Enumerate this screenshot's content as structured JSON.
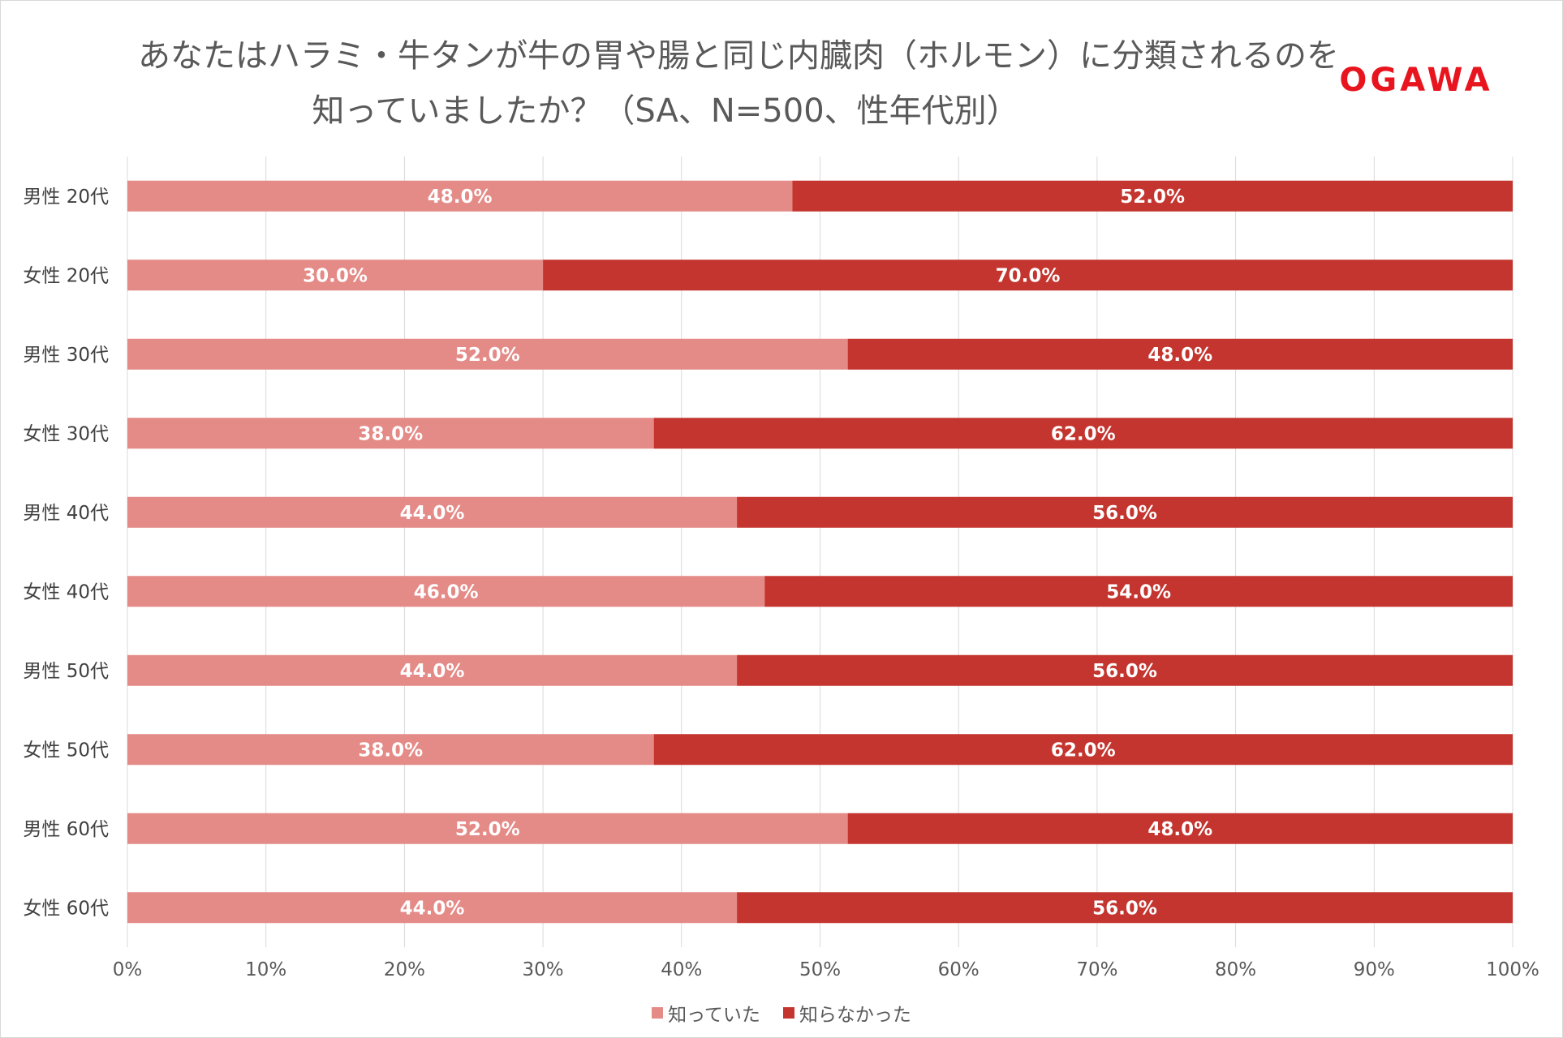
{
  "title": {
    "line1": "あなたはハラミ・牛タンが牛の胃や腸と同じ内臓肉（ホルモン）に分類されるのを",
    "line2": "知っていましたか？（SA、N=500、性年代別）"
  },
  "logo": {
    "text": "OGAWA",
    "color": "#e8141e"
  },
  "legend": {
    "items": [
      {
        "label": "知っていた",
        "color": "#e48a87"
      },
      {
        "label": "知らなかった",
        "color": "#c4352f"
      }
    ],
    "position": "bottom"
  },
  "chart_data": {
    "type": "bar",
    "orientation": "horizontal",
    "stacked": true,
    "percent_scale": true,
    "categories": [
      "男性 20代",
      "女性 20代",
      "男性 30代",
      "女性 30代",
      "男性 40代",
      "女性 40代",
      "男性 50代",
      "女性 50代",
      "男性 60代",
      "女性 60代"
    ],
    "series": [
      {
        "name": "知っていた",
        "color": "#e48a87",
        "values": [
          48.0,
          30.0,
          52.0,
          38.0,
          44.0,
          46.0,
          44.0,
          38.0,
          52.0,
          44.0
        ]
      },
      {
        "name": "知らなかった",
        "color": "#c4352f",
        "values": [
          52.0,
          70.0,
          48.0,
          62.0,
          56.0,
          54.0,
          56.0,
          62.0,
          48.0,
          56.0
        ]
      }
    ],
    "xlim": [
      0,
      100
    ],
    "x_ticks": [
      "0%",
      "10%",
      "20%",
      "30%",
      "40%",
      "50%",
      "60%",
      "70%",
      "80%",
      "90%",
      "100%"
    ],
    "data_label_format": "0.0%",
    "grid": true
  }
}
